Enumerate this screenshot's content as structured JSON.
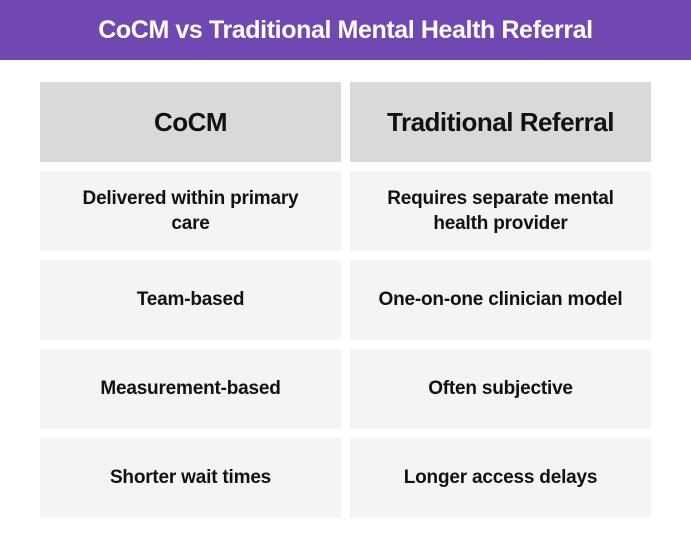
{
  "banner": {
    "title": "CoCM vs Traditional Mental Health Referral"
  },
  "chart_data": {
    "type": "table",
    "title": "CoCM vs Traditional Mental Health Referral",
    "columns": [
      "CoCM",
      "Traditional Referral"
    ],
    "rows": [
      [
        "Delivered within primary care",
        "Requires separate mental health provider"
      ],
      [
        "Team-based",
        "One-on-one clinician model"
      ],
      [
        "Measurement-based",
        "Often subjective"
      ],
      [
        "Shorter wait times",
        "Longer access delays"
      ]
    ],
    "layout": {
      "legend": "none",
      "grid": "off",
      "header_row": true
    }
  },
  "colors": {
    "accent": "#7148B2",
    "header_cell": "#D9D9D9",
    "row_cell": "#F4F4F4",
    "text": "#111111",
    "title_text": "#FFFFFF"
  }
}
